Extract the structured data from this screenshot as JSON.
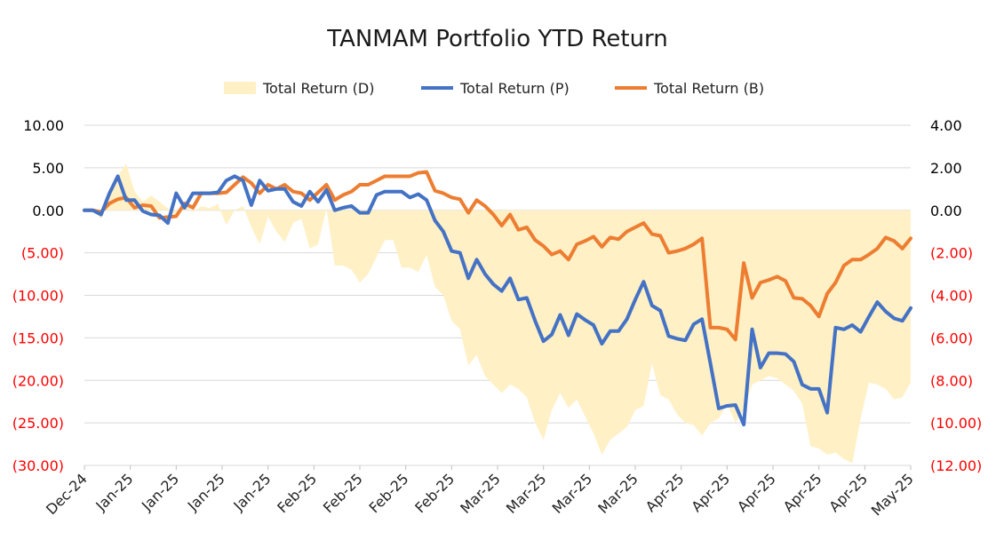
{
  "chart_data": {
    "type": "line",
    "title": "TANMAM Portfolio YTD Return",
    "legend": [
      {
        "name": "Total Return (D)",
        "color": "#FFF0C6",
        "kind": "area",
        "axis": "right"
      },
      {
        "name": "Total Return (P)",
        "color": "#4472C4",
        "kind": "line",
        "axis": "left"
      },
      {
        "name": "Total Return (B)",
        "color": "#ED7D31",
        "kind": "line",
        "axis": "left"
      }
    ],
    "legend_position": "top",
    "left_axis": {
      "range": [
        -30,
        10
      ],
      "ticks": [
        10,
        5,
        0,
        -5,
        -10,
        -15,
        -20,
        -25,
        -30
      ],
      "labels": [
        "10.00",
        "5.00",
        "0.00",
        "(5.00)",
        "(10.00)",
        "(15.00)",
        "(20.00)",
        "(25.00)",
        "(30.00)"
      ],
      "negative_color": "#FF0000",
      "positive_color": "#000000"
    },
    "right_axis": {
      "range": [
        -12,
        4
      ],
      "ticks": [
        4,
        2,
        0,
        -2,
        -4,
        -6,
        -8,
        -10,
        -12
      ],
      "labels": [
        "4.00",
        "2.00",
        "0.00",
        "(2.00)",
        "(4.00)",
        "(6.00)",
        "(8.00)",
        "(10.00)",
        "(12.00)"
      ],
      "negative_color": "#FF0000",
      "positive_color": "#000000"
    },
    "x_tick_labels": [
      "Dec-24",
      "Jan-25",
      "Jan-25",
      "Jan-25",
      "Jan-25",
      "Feb-25",
      "Feb-25",
      "Feb-25",
      "Feb-25",
      "Mar-25",
      "Mar-25",
      "Mar-25",
      "Mar-25",
      "Apr-25",
      "Apr-25",
      "Apr-25",
      "Apr-25",
      "Apr-25",
      "May-25"
    ],
    "grid": "horizontal",
    "series": [
      {
        "name": "Total Return (P)",
        "axis": "left",
        "values": [
          0,
          0,
          -0.5,
          2,
          4,
          1.2,
          1.2,
          -0.1,
          -0.5,
          -0.6,
          -1.5,
          2,
          0.3,
          2,
          2,
          2,
          2.1,
          3.5,
          4,
          3.5,
          0.6,
          3.5,
          2.3,
          2.5,
          2.5,
          1,
          0.5,
          2.2,
          1,
          2.4,
          0,
          0.3,
          0.5,
          -0.3,
          -0.3,
          1.8,
          2.2,
          2.2,
          2.2,
          1.5,
          1.9,
          1.2,
          -1.2,
          -2.5,
          -4.8,
          -5,
          -8,
          -5.8,
          -7.5,
          -8.7,
          -9.5,
          -8,
          -10.5,
          -10.3,
          -13,
          -15.4,
          -14.6,
          -12.3,
          -14.7,
          -12.2,
          -12.9,
          -13.5,
          -15.7,
          -14.2,
          -14.2,
          -12.8,
          -10.5,
          -8.4,
          -11.2,
          -11.8,
          -14.8,
          -15.1,
          -15.3,
          -13.4,
          -12.8,
          -18,
          -23.3,
          -23,
          -22.9,
          -25.2,
          -14,
          -18.5,
          -16.8,
          -16.8,
          -16.9,
          -17.8,
          -20.5,
          -21,
          -21,
          -23.8,
          -13.8,
          -14,
          -13.5,
          -14.3,
          -12.5,
          -10.8,
          -11.9,
          -12.7,
          -13,
          -11.5
        ]
      },
      {
        "name": "Total Return (B)",
        "axis": "left",
        "values": [
          0,
          0,
          -0.2,
          0.8,
          1.3,
          1.5,
          0.3,
          0.6,
          0.5,
          -0.9,
          -0.8,
          -0.7,
          0.8,
          0.3,
          2,
          2,
          2,
          2.1,
          3,
          3.9,
          3.2,
          2,
          3,
          2.5,
          3,
          2.2,
          2,
          1.2,
          2.1,
          3,
          1.2,
          1.8,
          2.2,
          3,
          3,
          3.5,
          4,
          4,
          4,
          4,
          4.4,
          4.5,
          2.3,
          2,
          1.5,
          1.3,
          -0.3,
          1.2,
          0.5,
          -0.5,
          -1.8,
          -0.5,
          -2.3,
          -2,
          -3.5,
          -4.2,
          -5.2,
          -4.8,
          -5.8,
          -4,
          -3.6,
          -3.1,
          -4.3,
          -3.2,
          -3.4,
          -2.5,
          -2,
          -1.5,
          -2.8,
          -3,
          -5,
          -4.8,
          -4.5,
          -4,
          -3.3,
          -13.8,
          -13.8,
          -14,
          -15.2,
          -6.2,
          -10.3,
          -8.5,
          -8.2,
          -7.8,
          -8.3,
          -10.3,
          -10.4,
          -11.2,
          -12.5,
          -9.8,
          -8.5,
          -6.5,
          -5.8,
          -5.8,
          -5.2,
          -4.5,
          -3.2,
          -3.6,
          -4.5,
          -3.3
        ]
      },
      {
        "name": "Total Return (D)",
        "axis": "right",
        "values": [
          0,
          0,
          -0.4,
          0.6,
          1.6,
          2.2,
          0.9,
          0.4,
          0.7,
          0.4,
          0.1,
          -0.3,
          0.3,
          -0.1,
          0.2,
          0.1,
          0.3,
          -0.7,
          0,
          0.2,
          -0.8,
          -1.6,
          -0.3,
          -1,
          -1.5,
          -0.6,
          -0.4,
          -1.8,
          -1.6,
          0.1,
          -2.6,
          -2.6,
          -2.8,
          -3.4,
          -3,
          -2.2,
          -1.4,
          -1.4,
          -2.7,
          -2.7,
          -2.9,
          -2.1,
          -3.6,
          -4,
          -5.2,
          -5.6,
          -7.3,
          -6.8,
          -7.8,
          -8.2,
          -8.6,
          -8.2,
          -8.4,
          -8.8,
          -10,
          -10.8,
          -9.4,
          -8.6,
          -9.3,
          -8.9,
          -9.7,
          -10.5,
          -11.5,
          -10.8,
          -10.5,
          -10.2,
          -9.4,
          -9.2,
          -7.2,
          -8.7,
          -8.9,
          -9.6,
          -10,
          -10.1,
          -10.6,
          -10,
          -9.8,
          -9.1,
          -10,
          -9.4,
          -8.2,
          -8,
          -7.8,
          -7.9,
          -8.2,
          -8.5,
          -9.1,
          -11.1,
          -11.2,
          -11.5,
          -11.4,
          -11.7,
          -11.9,
          -9.8,
          -8.1,
          -8.2,
          -8.4,
          -8.9,
          -8.8,
          -8.1
        ]
      }
    ]
  }
}
